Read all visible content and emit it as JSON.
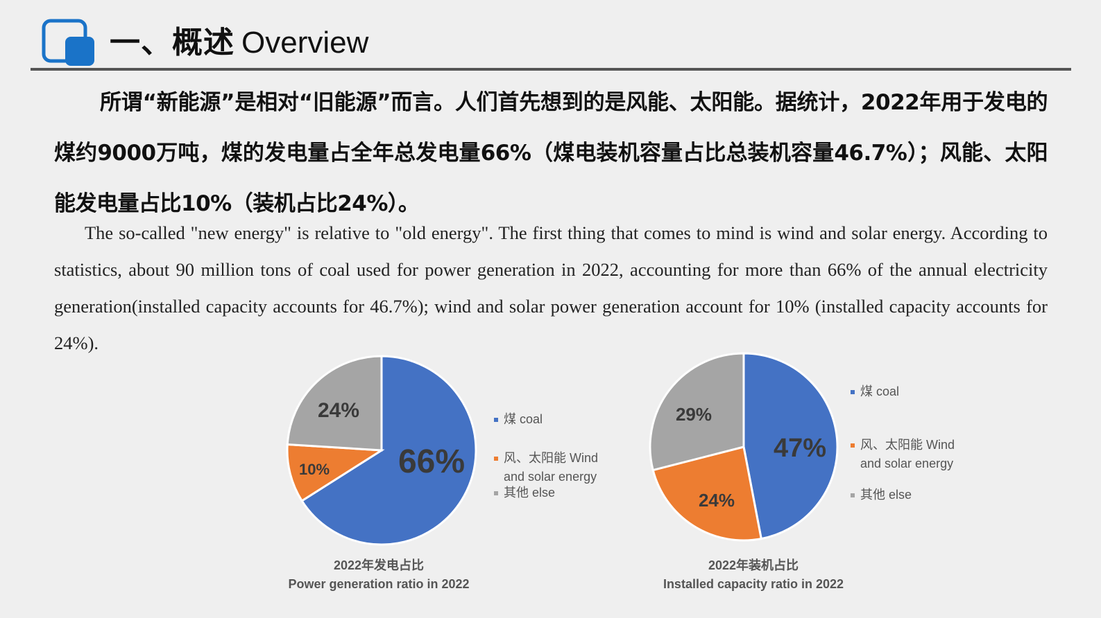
{
  "header": {
    "title_zh": "一、概述",
    "title_en": "Overview",
    "icon": "copy-squares-icon",
    "accent_color": "#1a73c8"
  },
  "body": {
    "paragraph_zh": "所谓“新能源”是相对“旧能源”而言。人们首先想到的是风能、太阳能。据统计，2022年用于发电的煤约9000万吨，煤的发电量占全年总发电量66%（煤电装机容量占比总装机容量46.7%）；风能、太阳能发电量占比10%（装机占比24%）。",
    "paragraph_en": "The so-called \"new energy\" is relative to \"old energy\". The first thing that comes to mind is wind and solar energy. According to statistics, about 90 million tons of coal used for power generation in 2022, accounting for more than 66% of the annual electricity generation(installed capacity accounts for 46.7%); wind and solar power generation account for 10% (installed capacity accounts for 24%)."
  },
  "legend": {
    "coal": "煤 coal",
    "wind_solar_line1": "风、太阳能 Wind",
    "wind_solar_line2": "and solar energy",
    "else": "其他 else"
  },
  "colors": {
    "coal": "#4472c4",
    "wind_solar": "#ed7d31",
    "else": "#a5a5a5"
  },
  "chart_data": [
    {
      "type": "pie",
      "title": "2022年发电占比",
      "subtitle": "Power generation ratio in 2022",
      "categories": [
        "煤 coal",
        "风、太阳能 Wind and solar energy",
        "其他 else"
      ],
      "values": [
        66,
        10,
        24
      ],
      "labels": [
        "66%",
        "10%",
        "24%"
      ],
      "colors": [
        "#4472c4",
        "#ed7d31",
        "#a5a5a5"
      ],
      "legend_position": "right"
    },
    {
      "type": "pie",
      "title": "2022年装机占比",
      "subtitle": "Installed capacity ratio in 2022",
      "categories": [
        "煤 coal",
        "风、太阳能 Wind and solar energy",
        "其他 else"
      ],
      "values": [
        47,
        24,
        29
      ],
      "labels": [
        "47%",
        "24%",
        "29%"
      ],
      "colors": [
        "#4472c4",
        "#ed7d31",
        "#a5a5a5"
      ],
      "legend_position": "right"
    }
  ]
}
